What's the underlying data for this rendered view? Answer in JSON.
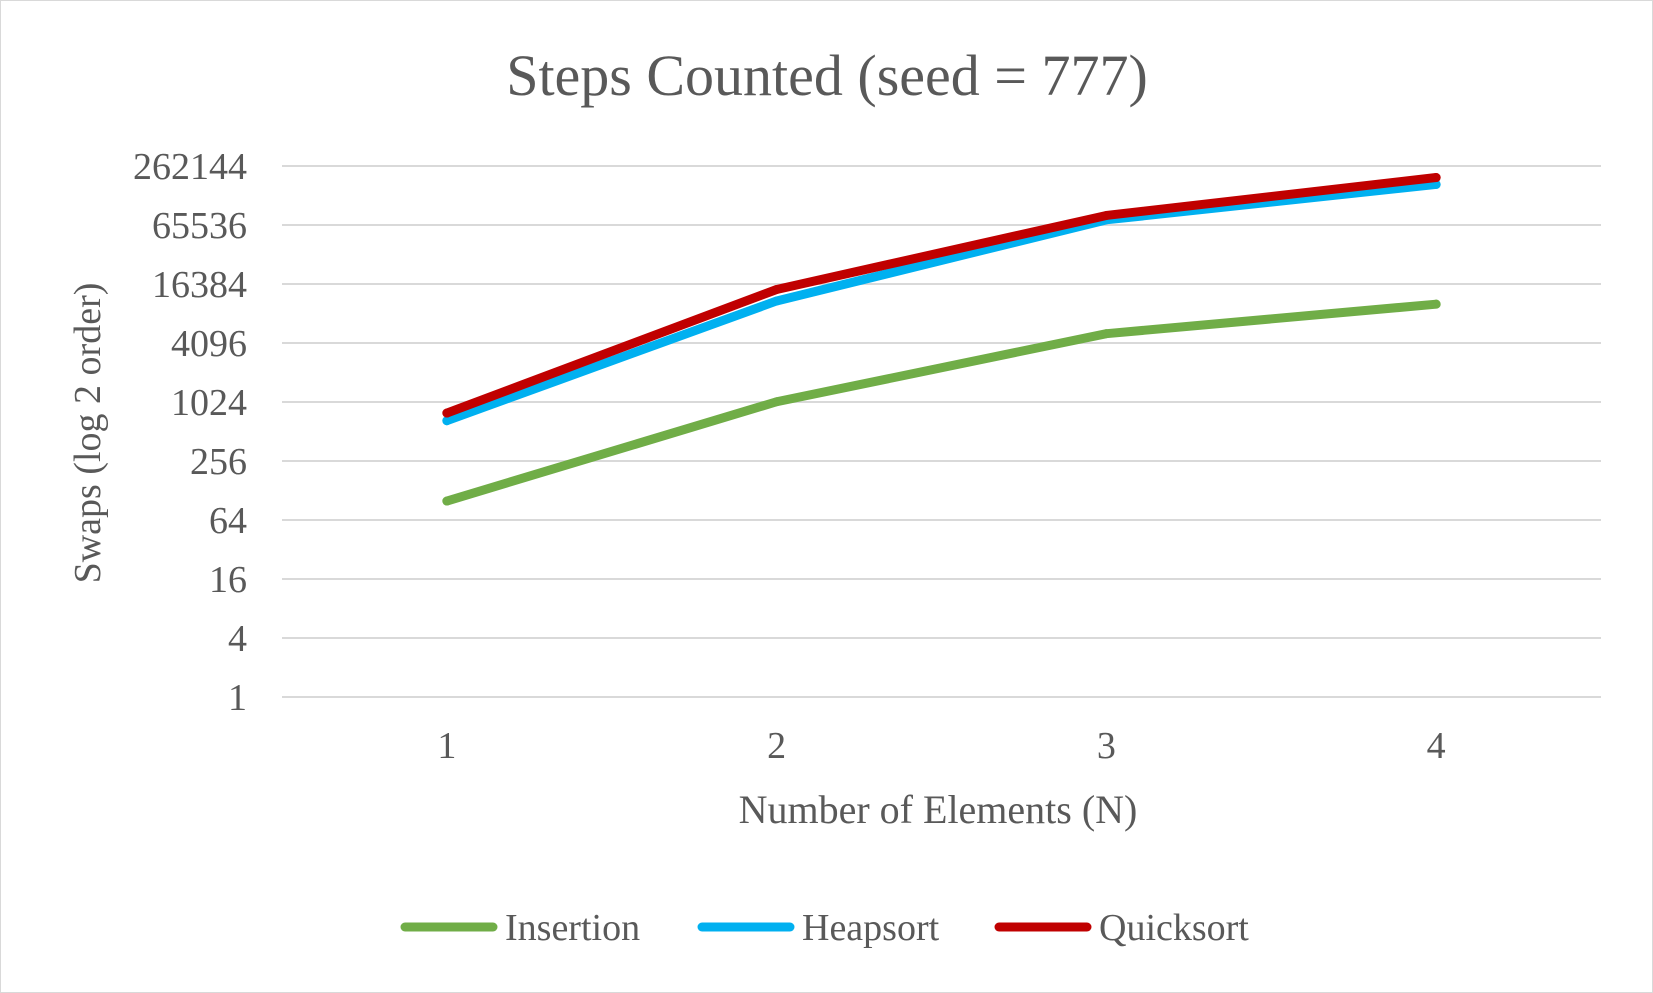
{
  "chart_data": {
    "type": "line",
    "title": "Steps Counted (seed = 777)",
    "xlabel": "Number of Elements (N)",
    "ylabel": "Swaps (log 2 order)",
    "y_scale": "log2",
    "ylim": [
      1,
      262144
    ],
    "y_ticks": [
      "1",
      "4",
      "16",
      "64",
      "256",
      "1024",
      "4096",
      "16384",
      "65536",
      "262144"
    ],
    "categories": [
      "1",
      "2",
      "3",
      "4"
    ],
    "grid": true,
    "legend_position": "bottom",
    "series": [
      {
        "name": "Insertion",
        "color": "#70ad47",
        "values": [
          100,
          1030,
          5100,
          10200
        ]
      },
      {
        "name": "Heapsort",
        "color": "#00b0f0",
        "values": [
          660,
          11000,
          74000,
          170000
        ]
      },
      {
        "name": "Quicksort",
        "color": "#c00000",
        "values": [
          790,
          14400,
          82000,
          200000
        ]
      }
    ]
  }
}
